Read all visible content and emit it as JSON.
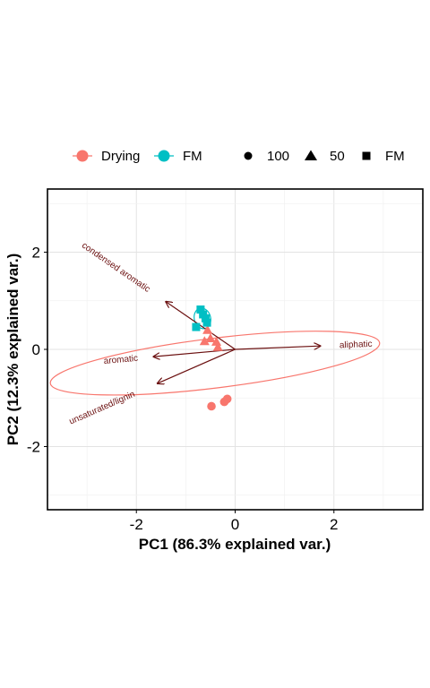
{
  "chart_data": {
    "type": "scatter",
    "title": "",
    "xlabel": "PC1 (86.3% explained var.)",
    "ylabel": "PC2 (12.3% explained var.)",
    "xlim": [
      -3.8,
      3.8
    ],
    "ylim": [
      -3.3,
      3.3
    ],
    "xticks": [
      -2,
      0,
      2
    ],
    "yticks": [
      -2,
      0,
      2
    ],
    "x_tick_labels": [
      "-2",
      "0",
      "2"
    ],
    "y_tick_labels": [
      "-2",
      "0",
      "2"
    ],
    "grid": true,
    "legend_position": "top",
    "colors": {
      "Drying": "#F8766D",
      "FM": "#00BFC4",
      "arrow": "#6b1010"
    },
    "color_legend": [
      {
        "label": "Drying",
        "color": "#F8766D"
      },
      {
        "label": "FM",
        "color": "#00BFC4"
      }
    ],
    "shape_legend": [
      {
        "label": "100",
        "shape": "circle"
      },
      {
        "label": "50",
        "shape": "triangle"
      },
      {
        "label": "FM",
        "shape": "square"
      }
    ],
    "points": [
      {
        "x": -0.48,
        "y": -1.17,
        "group": "Drying",
        "shape": "circle"
      },
      {
        "x": -0.22,
        "y": -1.08,
        "group": "Drying",
        "shape": "circle"
      },
      {
        "x": -0.16,
        "y": -1.02,
        "group": "Drying",
        "shape": "circle"
      },
      {
        "x": -0.56,
        "y": 0.4,
        "group": "Drying",
        "shape": "triangle"
      },
      {
        "x": -0.62,
        "y": 0.17,
        "group": "Drying",
        "shape": "triangle"
      },
      {
        "x": -0.5,
        "y": 0.23,
        "group": "Drying",
        "shape": "triangle"
      },
      {
        "x": -0.38,
        "y": 0.16,
        "group": "Drying",
        "shape": "triangle"
      },
      {
        "x": -0.35,
        "y": 0.05,
        "group": "Drying",
        "shape": "triangle"
      },
      {
        "x": -0.7,
        "y": 0.82,
        "group": "FM",
        "shape": "square"
      },
      {
        "x": -0.65,
        "y": 0.72,
        "group": "FM",
        "shape": "square"
      },
      {
        "x": -0.6,
        "y": 0.64,
        "group": "FM",
        "shape": "square"
      },
      {
        "x": -0.57,
        "y": 0.55,
        "group": "FM",
        "shape": "square"
      },
      {
        "x": -0.79,
        "y": 0.46,
        "group": "FM",
        "shape": "square"
      }
    ],
    "vectors": [
      {
        "label": "condensed aromatic",
        "x": -1.4,
        "y": 0.98
      },
      {
        "label": "aliphatic",
        "x": 1.72,
        "y": 0.07
      },
      {
        "label": "aromatic",
        "x": -1.65,
        "y": -0.15
      },
      {
        "label": "unsaturated/lignin",
        "x": -1.57,
        "y": -0.7
      }
    ]
  }
}
